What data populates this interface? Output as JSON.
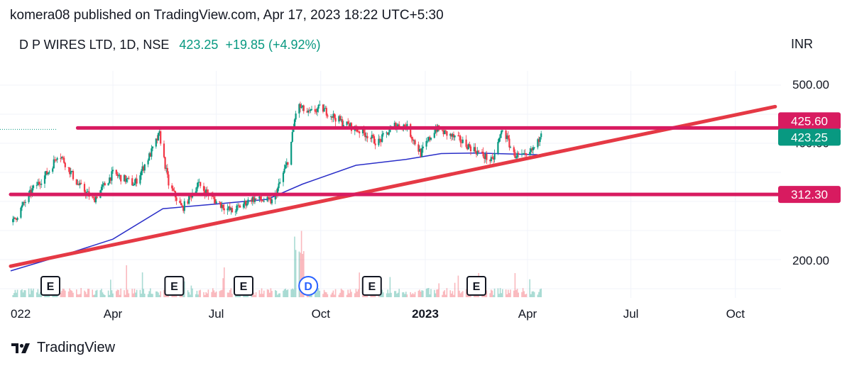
{
  "header": {
    "published_line": "komera08 published on TradingView.com, Apr 17, 2023 18:22 UTC+5:30",
    "symbol": "D P WIRES LTD, 1D, NSE",
    "last_price": "423.25",
    "change": "+19.85 (+4.92%)",
    "currency": "INR"
  },
  "footer": {
    "brand": "TradingView"
  },
  "colors": {
    "up": "#089981",
    "down": "#f23645",
    "line": "#d81b60",
    "trend": "#e53945",
    "ma": "#2a2ec8",
    "grid": "#f0f3fa"
  },
  "chart_data": {
    "type": "candlestick",
    "instrument": "D P WIRES LTD",
    "interval": "1D",
    "exchange": "NSE",
    "x_range": [
      "2022-01-01",
      "2023-10-31"
    ],
    "x_ticks": [
      "022",
      "Apr",
      "Jul",
      "Oct",
      "2023",
      "Apr",
      "Jul",
      "Oct"
    ],
    "y_range": [
      150,
      545
    ],
    "y_ticks": [
      "500.00",
      "400.00",
      "200.00"
    ],
    "grid": true,
    "price_labels": [
      {
        "text": "425.60",
        "color": "#d81b60"
      },
      {
        "text": "423.25",
        "color": "#089981"
      },
      {
        "text": "312.30",
        "color": "#d81b60"
      }
    ],
    "horizontal_lines": [
      {
        "price": 425.6,
        "from": "2022-03-01"
      },
      {
        "price": 312.3,
        "from": "2022-01-01"
      }
    ],
    "trend_line": {
      "points": [
        [
          "2022-01-01",
          190
        ],
        [
          "2023-11-05",
          462
        ]
      ]
    },
    "moving_average": [
      [
        "2022-01-01",
        182
      ],
      [
        "2022-02-15",
        208
      ],
      [
        "2022-04-01",
        236
      ],
      [
        "2022-05-15",
        288
      ],
      [
        "2022-07-01",
        296
      ],
      [
        "2022-08-15",
        304
      ],
      [
        "2022-09-15",
        330
      ],
      [
        "2022-11-01",
        362
      ],
      [
        "2022-12-15",
        372
      ],
      [
        "2023-01-15",
        382
      ],
      [
        "2023-02-15",
        383
      ],
      [
        "2023-04-10",
        380
      ]
    ],
    "price_series": [
      [
        "2022-01-03",
        265
      ],
      [
        "2022-01-20",
        320
      ],
      [
        "2022-02-05",
        355
      ],
      [
        "2022-02-12",
        385
      ],
      [
        "2022-03-01",
        330
      ],
      [
        "2022-03-15",
        303
      ],
      [
        "2022-04-01",
        348
      ],
      [
        "2022-04-20",
        330
      ],
      [
        "2022-05-05",
        385
      ],
      [
        "2022-05-12",
        415
      ],
      [
        "2022-05-20",
        330
      ],
      [
        "2022-06-01",
        288
      ],
      [
        "2022-06-15",
        330
      ],
      [
        "2022-07-01",
        300
      ],
      [
        "2022-07-15",
        283
      ],
      [
        "2022-08-01",
        305
      ],
      [
        "2022-08-20",
        300
      ],
      [
        "2022-09-03",
        375
      ],
      [
        "2022-09-10",
        465
      ],
      [
        "2022-09-20",
        450
      ],
      [
        "2022-10-01",
        460
      ],
      [
        "2022-10-20",
        435
      ],
      [
        "2022-11-10",
        415
      ],
      [
        "2022-11-20",
        400
      ],
      [
        "2022-12-05",
        430
      ],
      [
        "2022-12-15",
        430
      ],
      [
        "2022-12-28",
        382
      ],
      [
        "2023-01-10",
        425
      ],
      [
        "2023-01-31",
        405
      ],
      [
        "2023-02-20",
        380
      ],
      [
        "2023-03-01",
        368
      ],
      [
        "2023-03-10",
        425
      ],
      [
        "2023-03-20",
        380
      ],
      [
        "2023-03-31",
        375
      ],
      [
        "2023-04-10",
        400
      ],
      [
        "2023-04-13",
        423.25
      ]
    ],
    "event_markers": [
      {
        "date": "2022-02-05",
        "label": "E"
      },
      {
        "date": "2022-05-25",
        "label": "E"
      },
      {
        "date": "2022-07-25",
        "label": "E"
      },
      {
        "date": "2022-09-20",
        "label": "D"
      },
      {
        "date": "2022-11-15",
        "label": "E"
      },
      {
        "date": "2023-02-15",
        "label": "E"
      }
    ]
  }
}
